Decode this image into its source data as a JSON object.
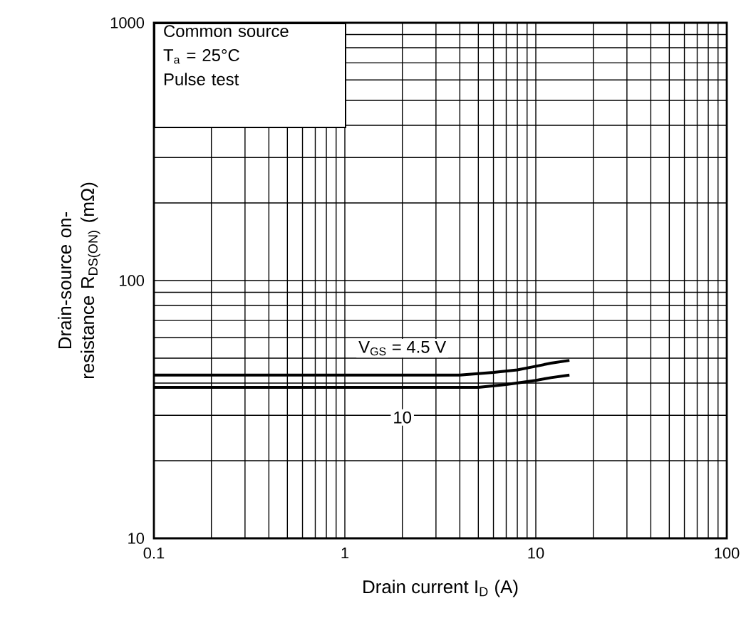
{
  "chart_data": {
    "type": "line",
    "xlabel": "Drain current   I$_{D}$   (A)",
    "ylabel": "Drain-source on-resistance R$_{DS(ON)}$   (mΩ)",
    "log": "xy",
    "grid": true,
    "xlim": [
      0.1,
      100
    ],
    "ylim": [
      10,
      1000
    ],
    "xticks": [
      0.1,
      1,
      10,
      100
    ],
    "yticks": [
      10,
      100,
      1000
    ],
    "annotations": [
      "Common source",
      "T$_{a}$ = 25°C",
      "Pulse test"
    ],
    "series": [
      {
        "name": "V$_{GS}$ = 4.5 V",
        "color": "#000000",
        "x": [
          0.1,
          1,
          4,
          6,
          8,
          10,
          12,
          15
        ],
        "values": [
          43,
          43,
          43,
          44,
          45,
          46.5,
          47.8,
          49
        ]
      },
      {
        "name": "10",
        "color": "#000000",
        "x": [
          0.1,
          1,
          5,
          7,
          10,
          12,
          15
        ],
        "values": [
          38.5,
          38.5,
          38.5,
          39.5,
          41,
          42,
          43
        ]
      }
    ]
  }
}
